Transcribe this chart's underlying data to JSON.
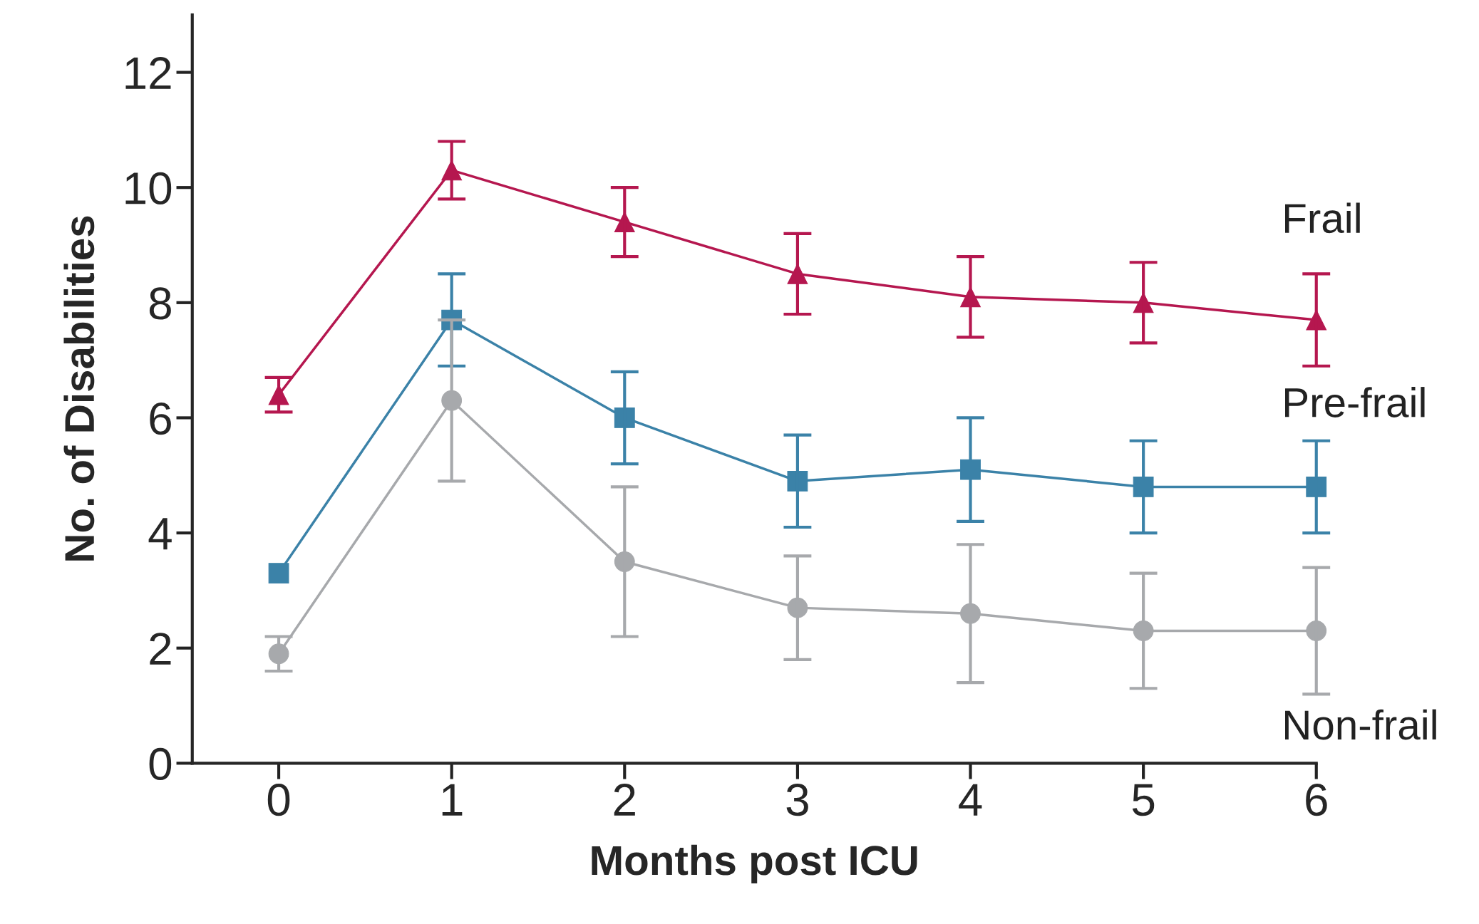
{
  "chart_data": {
    "type": "line",
    "xlabel": "Months post ICU",
    "ylabel": "No. of Disabilities",
    "x": [
      0,
      1,
      2,
      3,
      4,
      5,
      6
    ],
    "xlim": [
      -0.5,
      6
    ],
    "xticks": [
      0,
      1,
      2,
      3,
      4,
      5,
      6
    ],
    "ylim": [
      0,
      13
    ],
    "yticks": [
      0,
      2,
      4,
      6,
      8,
      10,
      12
    ],
    "grid": false,
    "legend": false,
    "series": [
      {
        "name": "Frail",
        "color": "#b5174f",
        "marker": "triangle",
        "values": [
          6.4,
          10.3,
          9.4,
          8.5,
          8.1,
          8.0,
          7.7
        ],
        "errors": [
          0.3,
          0.5,
          0.6,
          0.7,
          0.7,
          0.7,
          0.8
        ]
      },
      {
        "name": "Pre-frail",
        "color": "#3b82a8",
        "marker": "square",
        "values": [
          3.3,
          7.7,
          6.0,
          4.9,
          5.1,
          4.8,
          4.8
        ],
        "errors": [
          null,
          0.8,
          0.8,
          0.8,
          0.9,
          0.8,
          0.8
        ]
      },
      {
        "name": "Non-frail",
        "color": "#a7a9ac",
        "marker": "circle",
        "values": [
          1.9,
          6.3,
          3.5,
          2.7,
          2.6,
          2.3,
          2.3
        ],
        "errors": [
          0.3,
          1.4,
          1.3,
          0.9,
          1.2,
          1.0,
          1.1
        ]
      }
    ]
  }
}
